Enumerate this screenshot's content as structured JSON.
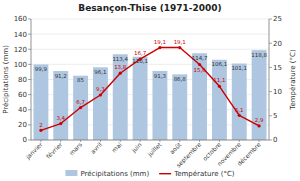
{
  "chart_data": {
    "type": "bar",
    "title": "Besançon-Thise (1971-2000)",
    "categories": [
      "janvier",
      "février",
      "mars",
      "avril",
      "mai",
      "juin",
      "juillet",
      "août",
      "septembre",
      "octobre",
      "novembre",
      "décembre"
    ],
    "series": [
      {
        "name": "Précipitations (mm)",
        "type": "bar",
        "color": "#aec6e0",
        "values": [
          99.9,
          91.2,
          85.0,
          96.1,
          113.4,
          110.1,
          91.3,
          86.8,
          114.7,
          106.1,
          101.1,
          118.8
        ],
        "value_labels": [
          "99,9",
          "91,2",
          "85",
          "96,1",
          "113,4",
          "110,1",
          "91,3",
          "86,8",
          "114,7",
          "106,1",
          "101,1",
          "118,8"
        ]
      },
      {
        "name": "Température (°C)",
        "type": "line",
        "axis": "y2",
        "color": "#cc0000",
        "marker": "circle",
        "values": [
          2.0,
          3.4,
          6.7,
          9.3,
          13.8,
          16.7,
          19.1,
          19.1,
          15.6,
          11.1,
          5.1,
          2.9
        ],
        "value_labels": [
          "2",
          "3,4",
          "6,7",
          "9,3",
          "13,8",
          "16,7",
          "19,1",
          "19,1",
          "15,6",
          "11,1",
          "5,1",
          "2,9"
        ]
      }
    ],
    "ylabel": "Précipitations (mm)",
    "y2label": "Température (°C)",
    "ylim": [
      0,
      160
    ],
    "yticks": [
      0,
      20,
      40,
      60,
      80,
      100,
      120,
      140,
      160
    ],
    "y2lim": [
      0,
      25
    ],
    "y2ticks": [
      0,
      5,
      10,
      15,
      20,
      25
    ],
    "grid": true,
    "data_labels": true,
    "legend": "bottom"
  }
}
